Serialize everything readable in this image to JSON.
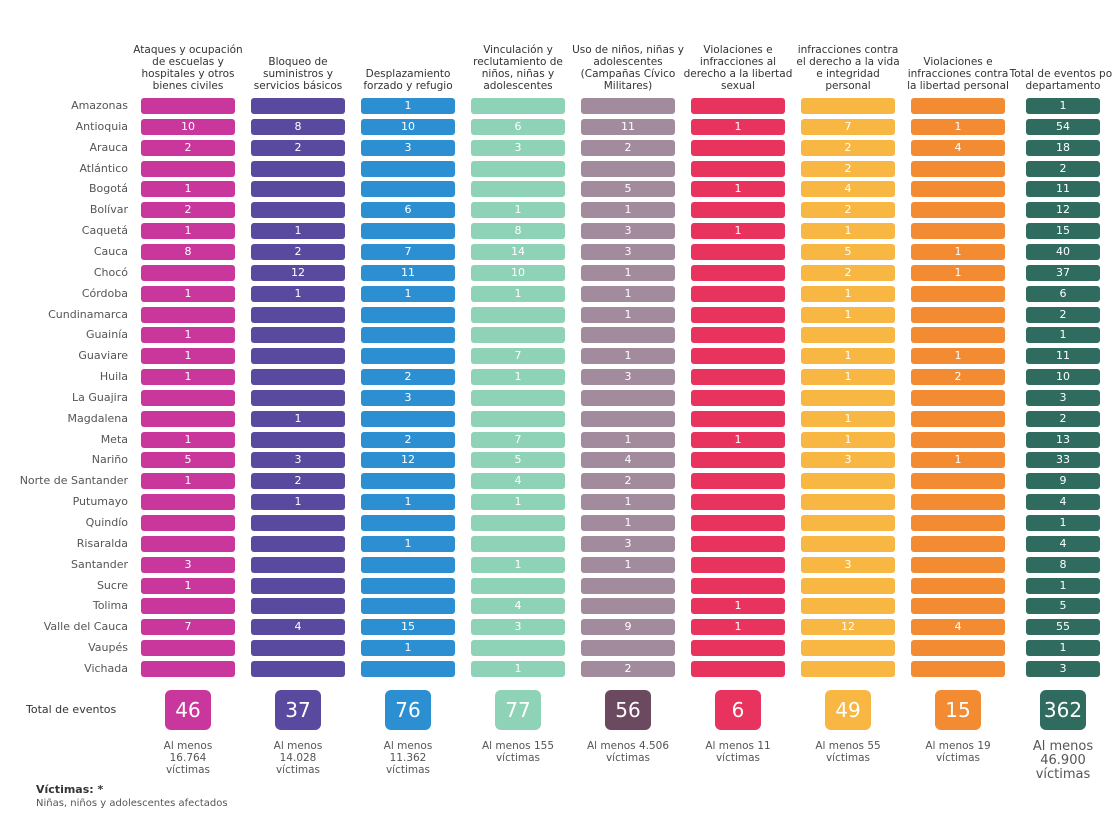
{
  "table": {
    "columns": [
      {
        "title": "Ataques y ocupación de escuelas y hospitales y otros bienes civiles",
        "color": "#c9379d",
        "total_color": "#c9379d",
        "total": 46,
        "victims": "Al menos 16.764 víctimas"
      },
      {
        "title": "Bloqueo de suministros y servicios básicos",
        "color": "#5a4a9f",
        "total_color": "#5a4a9f",
        "total": 37,
        "victims": "Al menos 14.028 víctimas"
      },
      {
        "title": "Desplazamiento forzado y refugio",
        "color": "#2b8fd1",
        "total_color": "#2b8fd1",
        "total": 76,
        "victims": "Al menos 11.362 víctimas"
      },
      {
        "title": "Vinculación y reclutamiento de niños, niñas y adolescentes",
        "color": "#8ed2b7",
        "total_color": "#8ed2b7",
        "total": 77,
        "victims": "Al menos 155 víctimas"
      },
      {
        "title": "Uso de niños, niñas y adolescentes (Campañas Cívico Militares)",
        "color": "#a38b9e",
        "total_color": "#6b4a60",
        "total": 56,
        "victims": "Al menos 4.506 víctimas"
      },
      {
        "title": "Violaciones e infracciones al derecho a la libertad sexual",
        "color": "#e8335f",
        "total_color": "#e8335f",
        "total": 6,
        "victims": "Al menos 11 víctimas"
      },
      {
        "title": "infracciones contra el derecho a la vida e integridad personal",
        "color": "#f8b643",
        "total_color": "#f8b643",
        "total": 49,
        "victims": "Al menos 55 víctimas"
      },
      {
        "title": "Violaciones e infracciones contra la libertad personal",
        "color": "#f28b31",
        "total_color": "#f28b31",
        "total": 15,
        "victims": "Al menos 19 víctimas"
      },
      {
        "title": "Total de eventos por departamento",
        "color": "#2f6b5e",
        "total_color": "#2f6b5e",
        "total": 362,
        "victims": "Al menos 46.900 víctimas"
      }
    ],
    "rows": [
      {
        "name": "Amazonas",
        "values": [
          null,
          null,
          1,
          null,
          null,
          null,
          null,
          null,
          1
        ]
      },
      {
        "name": "Antioquia",
        "values": [
          10,
          8,
          10,
          6,
          11,
          1,
          7,
          1,
          54
        ]
      },
      {
        "name": "Arauca",
        "values": [
          2,
          2,
          3,
          3,
          2,
          null,
          2,
          4,
          18
        ]
      },
      {
        "name": "Atlántico",
        "values": [
          null,
          null,
          null,
          null,
          null,
          null,
          2,
          null,
          2
        ]
      },
      {
        "name": "Bogotá",
        "values": [
          1,
          null,
          null,
          null,
          5,
          1,
          4,
          null,
          11
        ]
      },
      {
        "name": "Bolívar",
        "values": [
          2,
          null,
          6,
          1,
          1,
          null,
          2,
          null,
          12
        ]
      },
      {
        "name": "Caquetá",
        "values": [
          1,
          1,
          null,
          8,
          3,
          1,
          1,
          null,
          15
        ]
      },
      {
        "name": "Cauca",
        "values": [
          8,
          2,
          7,
          14,
          3,
          null,
          5,
          1,
          40
        ]
      },
      {
        "name": "Chocó",
        "values": [
          null,
          12,
          11,
          10,
          1,
          null,
          2,
          1,
          37
        ]
      },
      {
        "name": "Córdoba",
        "values": [
          1,
          1,
          1,
          1,
          1,
          null,
          1,
          null,
          6
        ]
      },
      {
        "name": "Cundinamarca",
        "values": [
          null,
          null,
          null,
          null,
          1,
          null,
          1,
          null,
          2
        ]
      },
      {
        "name": "Guainía",
        "values": [
          1,
          null,
          null,
          null,
          null,
          null,
          null,
          null,
          1
        ]
      },
      {
        "name": "Guaviare",
        "values": [
          1,
          null,
          null,
          7,
          1,
          null,
          1,
          1,
          11
        ]
      },
      {
        "name": "Huila",
        "values": [
          1,
          null,
          2,
          1,
          3,
          null,
          1,
          2,
          10
        ]
      },
      {
        "name": "La Guajira",
        "values": [
          null,
          null,
          3,
          null,
          null,
          null,
          null,
          null,
          3
        ]
      },
      {
        "name": "Magdalena",
        "values": [
          null,
          1,
          null,
          null,
          null,
          null,
          1,
          null,
          2
        ]
      },
      {
        "name": "Meta",
        "values": [
          1,
          null,
          2,
          7,
          1,
          1,
          1,
          null,
          13
        ]
      },
      {
        "name": "Nariño",
        "values": [
          5,
          3,
          12,
          5,
          4,
          null,
          3,
          1,
          33
        ]
      },
      {
        "name": "Norte de Santander",
        "values": [
          1,
          2,
          null,
          4,
          2,
          null,
          null,
          null,
          9
        ]
      },
      {
        "name": "Putumayo",
        "values": [
          null,
          1,
          1,
          1,
          1,
          null,
          null,
          null,
          4
        ]
      },
      {
        "name": "Quindío",
        "values": [
          null,
          null,
          null,
          null,
          1,
          null,
          null,
          null,
          1
        ]
      },
      {
        "name": "Risaralda",
        "values": [
          null,
          null,
          1,
          null,
          3,
          null,
          null,
          null,
          4
        ]
      },
      {
        "name": "Santander",
        "values": [
          3,
          null,
          null,
          1,
          1,
          null,
          3,
          null,
          8
        ]
      },
      {
        "name": "Sucre",
        "values": [
          1,
          null,
          null,
          null,
          null,
          null,
          null,
          null,
          1
        ]
      },
      {
        "name": "Tolima",
        "values": [
          null,
          null,
          null,
          4,
          null,
          1,
          null,
          null,
          5
        ]
      },
      {
        "name": "Valle del Cauca",
        "values": [
          7,
          4,
          15,
          3,
          9,
          1,
          12,
          4,
          55
        ]
      },
      {
        "name": "Vaupés",
        "values": [
          null,
          null,
          1,
          null,
          null,
          null,
          null,
          null,
          1
        ]
      },
      {
        "name": "Vichada",
        "values": [
          null,
          null,
          null,
          1,
          2,
          null,
          null,
          null,
          3
        ]
      }
    ],
    "totals_label": "Total de eventos",
    "footnote": {
      "title": "Víctimas: *",
      "text": "Niñas, niños y adolescentes afectados"
    }
  }
}
